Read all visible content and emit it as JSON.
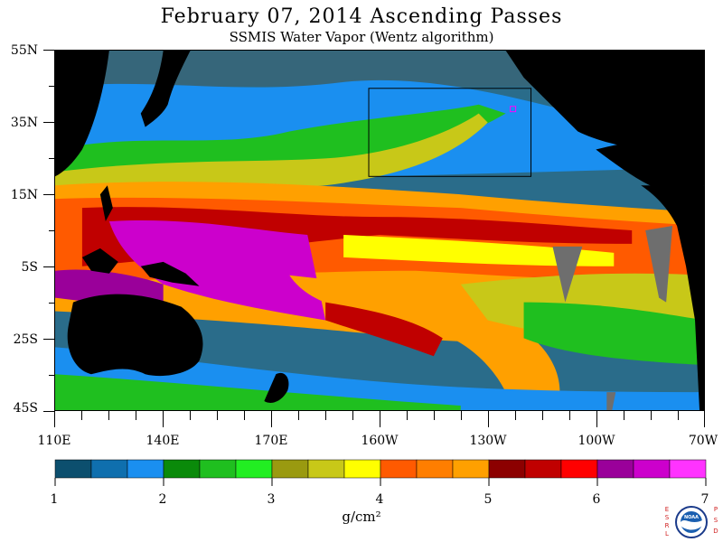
{
  "title": "February 07, 2014  Ascending Passes",
  "subtitle": "SSMIS Water Vapor (Wentz algorithm)",
  "lat_labels": [
    "55N",
    "35N",
    "15N",
    "5S",
    "25S",
    "45S"
  ],
  "lon_labels": [
    "110E",
    "140E",
    "170E",
    "160W",
    "130W",
    "100W",
    "70W"
  ],
  "colorbar": {
    "labels": [
      "1",
      "2",
      "3",
      "4",
      "5",
      "6",
      "7"
    ],
    "units": "g/cm²",
    "colors": [
      "#0c4f6e",
      "#0f6fae",
      "#1a8ff0",
      "#0a8a0a",
      "#1fbf1f",
      "#22ee22",
      "#9a9a10",
      "#c8c818",
      "#ffff00",
      "#ff5a00",
      "#ff7e00",
      "#ffa000",
      "#8c0000",
      "#c00000",
      "#ff0000",
      "#9a009a",
      "#cc00cc",
      "#ff33ff"
    ]
  },
  "logo": {
    "left_letters": "ESRL",
    "right_letters": "PSD",
    "center": "NOAA"
  },
  "map_colors": {
    "land": "#000000",
    "ocean_dry": "#2a6c8a",
    "box": "#000000"
  }
}
